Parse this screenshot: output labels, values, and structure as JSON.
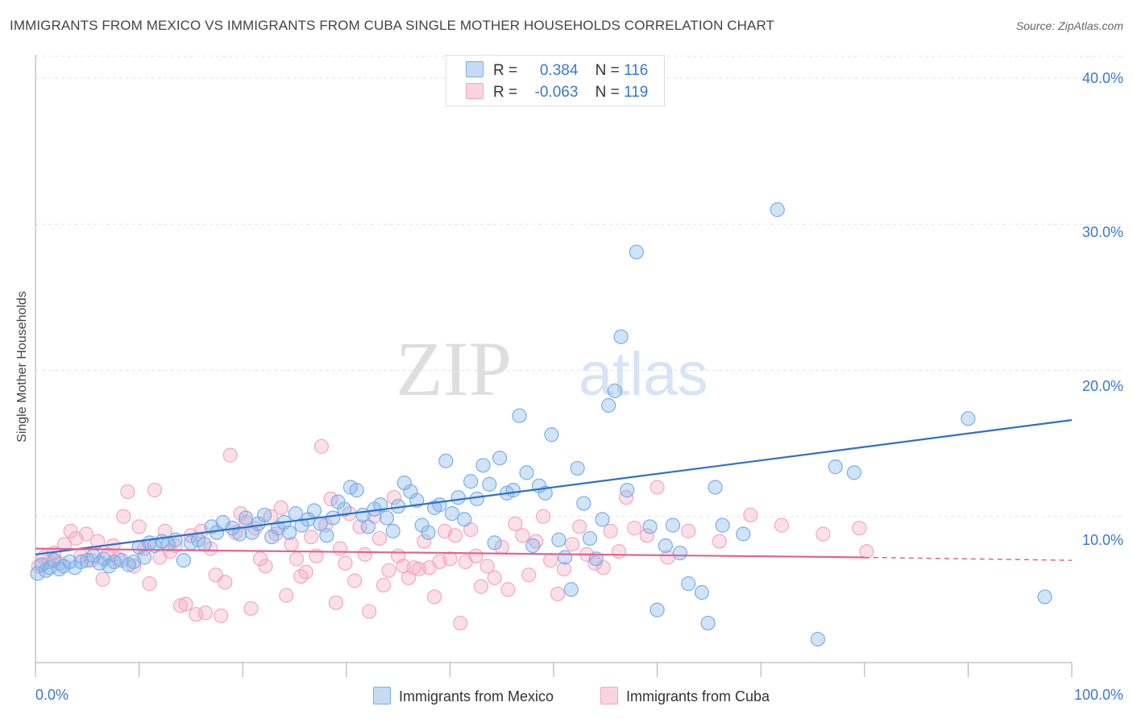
{
  "title": "IMMIGRANTS FROM MEXICO VS IMMIGRANTS FROM CUBA SINGLE MOTHER HOUSEHOLDS CORRELATION CHART",
  "source": "Source: ZipAtlas.com",
  "watermark": {
    "zip": "ZIP",
    "atlas": "atlas"
  },
  "legend": {
    "rows": [
      {
        "r_label": "R =",
        "r_value": "0.384",
        "n_label": "N =",
        "n_value": "116"
      },
      {
        "r_label": "R =",
        "r_value": "-0.063",
        "n_label": "N =",
        "n_value": "119"
      }
    ]
  },
  "bottom_legend": {
    "mexico": "Immigrants from Mexico",
    "cuba": "Immigrants from Cuba"
  },
  "axis": {
    "ylabel": "Single Mother Households",
    "x_ticks": [
      "0.0%",
      "100.0%"
    ],
    "y_ticks": [
      "10.0%",
      "20.0%",
      "30.0%",
      "40.0%"
    ]
  },
  "colors": {
    "mexico": "#7aaee8",
    "mexico_line": "#2f6fcc",
    "cuba": "#f4a6bf",
    "cuba_line": "#e0648f",
    "tick": "#3a78c9"
  },
  "chart_data": {
    "type": "scatter",
    "xlabel": "",
    "ylabel": "Single Mother Households",
    "xlim": [
      0,
      100
    ],
    "ylim": [
      0,
      42
    ],
    "y_gridlines": [
      10,
      20,
      30,
      40
    ],
    "series": [
      {
        "name": "Immigrants from Mexico",
        "trend": {
          "x": [
            0,
            100
          ],
          "y": [
            7.4,
            16.6
          ]
        },
        "points": [
          [
            0.2,
            6.1
          ],
          [
            0.6,
            6.7
          ],
          [
            1.0,
            6.3
          ],
          [
            1.4,
            6.5
          ],
          [
            1.8,
            7.0
          ],
          [
            2.3,
            6.4
          ],
          [
            2.7,
            6.6
          ],
          [
            3.3,
            6.9
          ],
          [
            3.8,
            6.5
          ],
          [
            4.4,
            6.9
          ],
          [
            5.0,
            7.0
          ],
          [
            5.6,
            7.3
          ],
          [
            6.2,
            6.8
          ],
          [
            6.6,
            7.1
          ],
          [
            7.1,
            6.6
          ],
          [
            7.6,
            6.9
          ],
          [
            8.3,
            7.0
          ],
          [
            9.0,
            6.7
          ],
          [
            9.5,
            6.9
          ],
          [
            10.0,
            7.9
          ],
          [
            10.5,
            7.2
          ],
          [
            11.0,
            8.2
          ],
          [
            11.5,
            8.0
          ],
          [
            12.2,
            8.3
          ],
          [
            12.8,
            8.1
          ],
          [
            13.5,
            8.4
          ],
          [
            14.3,
            7.0
          ],
          [
            15.0,
            8.2
          ],
          [
            15.7,
            8.4
          ],
          [
            16.3,
            8.1
          ],
          [
            17.0,
            9.3
          ],
          [
            17.5,
            8.9
          ],
          [
            18.1,
            9.6
          ],
          [
            19.0,
            9.2
          ],
          [
            19.7,
            8.8
          ],
          [
            20.3,
            9.9
          ],
          [
            20.9,
            8.9
          ],
          [
            21.5,
            9.5
          ],
          [
            22.1,
            10.1
          ],
          [
            22.8,
            8.6
          ],
          [
            23.4,
            9.2
          ],
          [
            24.0,
            9.6
          ],
          [
            24.5,
            8.9
          ],
          [
            25.1,
            10.2
          ],
          [
            25.7,
            9.4
          ],
          [
            26.3,
            9.8
          ],
          [
            26.9,
            10.4
          ],
          [
            27.5,
            9.5
          ],
          [
            28.1,
            8.7
          ],
          [
            28.7,
            9.9
          ],
          [
            29.2,
            11.0
          ],
          [
            29.8,
            10.5
          ],
          [
            30.4,
            12.0
          ],
          [
            31.0,
            11.8
          ],
          [
            31.6,
            10.1
          ],
          [
            32.1,
            9.3
          ],
          [
            32.7,
            10.5
          ],
          [
            33.3,
            10.8
          ],
          [
            33.9,
            9.9
          ],
          [
            34.5,
            9.0
          ],
          [
            35.0,
            10.7
          ],
          [
            35.6,
            12.3
          ],
          [
            36.2,
            11.7
          ],
          [
            36.8,
            11.1
          ],
          [
            37.3,
            9.4
          ],
          [
            37.9,
            8.9
          ],
          [
            38.5,
            10.6
          ],
          [
            39.0,
            10.8
          ],
          [
            39.6,
            13.8
          ],
          [
            40.2,
            10.2
          ],
          [
            40.8,
            11.3
          ],
          [
            41.4,
            9.8
          ],
          [
            42.0,
            12.4
          ],
          [
            42.6,
            11.2
          ],
          [
            43.2,
            13.5
          ],
          [
            43.8,
            12.2
          ],
          [
            44.3,
            8.2
          ],
          [
            44.8,
            14.0
          ],
          [
            45.5,
            11.6
          ],
          [
            46.1,
            11.8
          ],
          [
            46.7,
            16.9
          ],
          [
            47.4,
            13.0
          ],
          [
            48.0,
            8.0
          ],
          [
            48.6,
            12.1
          ],
          [
            49.2,
            11.6
          ],
          [
            49.8,
            15.6
          ],
          [
            50.5,
            8.4
          ],
          [
            51.1,
            7.2
          ],
          [
            51.7,
            5.0
          ],
          [
            52.3,
            13.3
          ],
          [
            52.9,
            10.9
          ],
          [
            53.5,
            8.5
          ],
          [
            54.1,
            7.1
          ],
          [
            54.7,
            9.8
          ],
          [
            55.3,
            17.6
          ],
          [
            55.9,
            18.6
          ],
          [
            56.5,
            22.3
          ],
          [
            57.1,
            11.8
          ],
          [
            58.0,
            28.1
          ],
          [
            59.3,
            9.3
          ],
          [
            60.0,
            3.6
          ],
          [
            60.8,
            8.0
          ],
          [
            61.5,
            9.4
          ],
          [
            62.2,
            7.5
          ],
          [
            63.0,
            5.4
          ],
          [
            64.3,
            4.8
          ],
          [
            64.9,
            2.7
          ],
          [
            65.6,
            12.0
          ],
          [
            66.3,
            9.4
          ],
          [
            68.3,
            8.8
          ],
          [
            71.6,
            31.0
          ],
          [
            75.5,
            1.6
          ],
          [
            77.2,
            13.4
          ],
          [
            79.0,
            13.0
          ],
          [
            90.0,
            16.7
          ],
          [
            97.4,
            4.5
          ]
        ]
      },
      {
        "name": "Immigrants from Cuba",
        "trend": {
          "x": [
            0,
            80,
            100
          ],
          "y": [
            7.8,
            7.2,
            7.0
          ]
        },
        "points": [
          [
            0.3,
            6.6
          ],
          [
            0.8,
            7.2
          ],
          [
            1.3,
            6.9
          ],
          [
            1.8,
            7.5
          ],
          [
            2.3,
            6.8
          ],
          [
            2.8,
            8.1
          ],
          [
            3.4,
            9.0
          ],
          [
            3.9,
            8.5
          ],
          [
            4.4,
            7.3
          ],
          [
            4.9,
            8.8
          ],
          [
            5.4,
            7.0
          ],
          [
            6.0,
            8.3
          ],
          [
            6.5,
            5.7
          ],
          [
            7.0,
            7.4
          ],
          [
            7.5,
            8.0
          ],
          [
            8.0,
            7.1
          ],
          [
            8.5,
            10.0
          ],
          [
            8.9,
            11.7
          ],
          [
            9.5,
            6.6
          ],
          [
            10.0,
            9.3
          ],
          [
            10.5,
            7.8
          ],
          [
            11.0,
            5.4
          ],
          [
            11.5,
            11.8
          ],
          [
            12.0,
            7.2
          ],
          [
            12.5,
            9.0
          ],
          [
            13.0,
            7.6
          ],
          [
            13.5,
            8.0
          ],
          [
            14.0,
            3.9
          ],
          [
            14.5,
            4.0
          ],
          [
            15.0,
            8.7
          ],
          [
            15.5,
            3.3
          ],
          [
            16.0,
            9.0
          ],
          [
            16.4,
            3.4
          ],
          [
            16.9,
            7.8
          ],
          [
            17.4,
            6.0
          ],
          [
            17.9,
            3.2
          ],
          [
            18.3,
            5.5
          ],
          [
            18.8,
            14.2
          ],
          [
            19.3,
            8.9
          ],
          [
            19.8,
            10.2
          ],
          [
            20.3,
            9.6
          ],
          [
            20.8,
            3.7
          ],
          [
            21.2,
            9.2
          ],
          [
            21.7,
            7.1
          ],
          [
            22.2,
            6.6
          ],
          [
            22.7,
            10.0
          ],
          [
            23.2,
            8.8
          ],
          [
            23.7,
            10.6
          ],
          [
            24.2,
            4.6
          ],
          [
            24.7,
            8.1
          ],
          [
            25.2,
            7.1
          ],
          [
            25.6,
            5.9
          ],
          [
            26.1,
            6.2
          ],
          [
            26.6,
            8.6
          ],
          [
            27.1,
            7.3
          ],
          [
            27.6,
            14.8
          ],
          [
            28.0,
            9.4
          ],
          [
            28.5,
            11.2
          ],
          [
            29.0,
            4.1
          ],
          [
            29.4,
            7.8
          ],
          [
            29.9,
            6.8
          ],
          [
            30.3,
            10.2
          ],
          [
            30.8,
            5.6
          ],
          [
            31.3,
            9.3
          ],
          [
            31.8,
            7.4
          ],
          [
            32.2,
            3.5
          ],
          [
            32.7,
            10.0
          ],
          [
            33.2,
            8.5
          ],
          [
            33.6,
            5.3
          ],
          [
            34.1,
            6.3
          ],
          [
            34.6,
            11.3
          ],
          [
            35.0,
            7.3
          ],
          [
            35.5,
            6.6
          ],
          [
            36.0,
            5.8
          ],
          [
            36.5,
            6.5
          ],
          [
            37.0,
            6.4
          ],
          [
            37.5,
            8.3
          ],
          [
            38.0,
            6.5
          ],
          [
            38.5,
            4.5
          ],
          [
            39.0,
            6.9
          ],
          [
            39.5,
            9.0
          ],
          [
            40.0,
            7.1
          ],
          [
            40.5,
            8.7
          ],
          [
            41.0,
            2.7
          ],
          [
            41.5,
            6.9
          ],
          [
            42.0,
            9.1
          ],
          [
            42.5,
            7.3
          ],
          [
            43.0,
            5.2
          ],
          [
            43.6,
            6.6
          ],
          [
            44.3,
            5.8
          ],
          [
            45.0,
            7.9
          ],
          [
            45.6,
            5.0
          ],
          [
            46.3,
            9.5
          ],
          [
            47.0,
            8.7
          ],
          [
            47.6,
            6.0
          ],
          [
            48.3,
            8.3
          ],
          [
            49.0,
            10.0
          ],
          [
            49.7,
            7.0
          ],
          [
            50.4,
            4.7
          ],
          [
            51.0,
            6.4
          ],
          [
            51.8,
            8.1
          ],
          [
            52.5,
            9.3
          ],
          [
            53.2,
            7.4
          ],
          [
            54.0,
            6.8
          ],
          [
            54.8,
            6.5
          ],
          [
            55.5,
            9.0
          ],
          [
            56.3,
            7.6
          ],
          [
            57.0,
            11.3
          ],
          [
            57.8,
            9.2
          ],
          [
            59.0,
            8.7
          ],
          [
            60.0,
            12.0
          ],
          [
            61.0,
            7.2
          ],
          [
            63.0,
            9.0
          ],
          [
            66.0,
            8.3
          ],
          [
            69.0,
            10.1
          ],
          [
            72.0,
            9.4
          ],
          [
            76.0,
            8.8
          ],
          [
            79.5,
            9.2
          ],
          [
            80.2,
            7.6
          ]
        ]
      }
    ]
  }
}
